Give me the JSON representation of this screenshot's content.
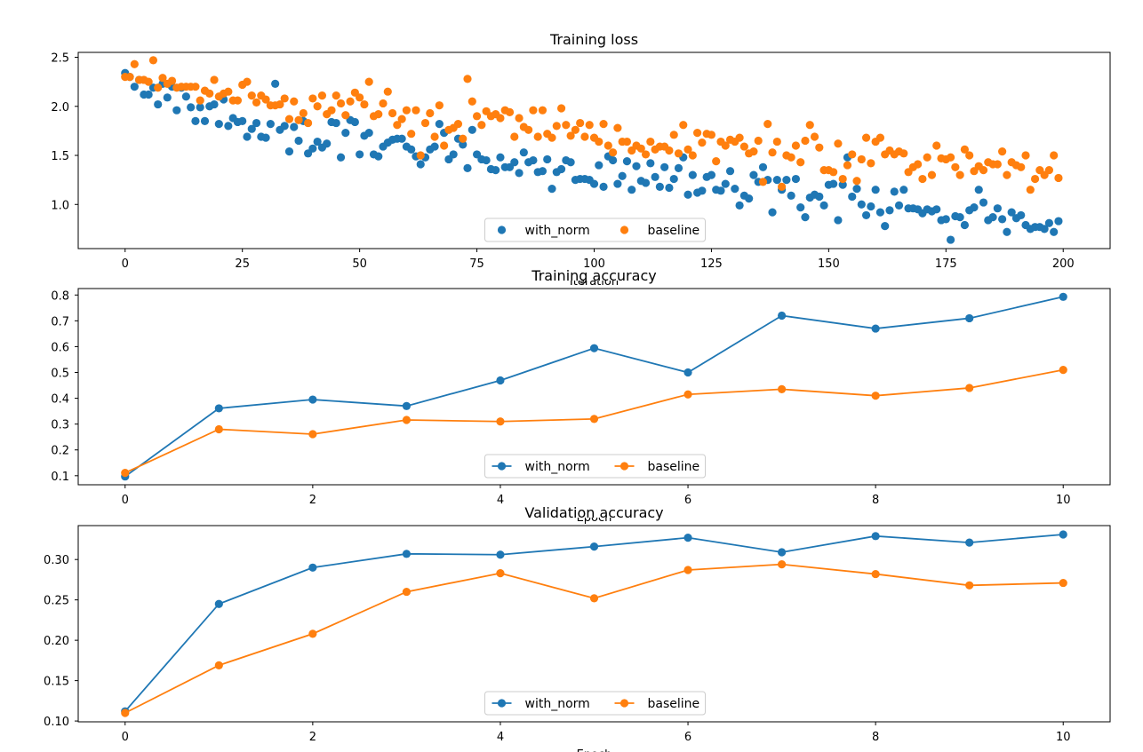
{
  "colors": {
    "with_norm": "#1f77b4",
    "baseline": "#ff7f0e",
    "axis": "#000000",
    "legend_border": "#cccccc"
  },
  "chart_data": [
    {
      "type": "scatter",
      "title": "Training loss",
      "xlabel": "Iteration",
      "ylabel": "",
      "xlim": [
        -10,
        210
      ],
      "ylim": [
        0.55,
        2.55
      ],
      "xticks": [
        0,
        25,
        50,
        75,
        100,
        125,
        150,
        175,
        200
      ],
      "yticks": [
        1.0,
        1.5,
        2.0,
        2.5
      ],
      "ytick_labels": [
        "1.0",
        "1.5",
        "2.0",
        "2.5"
      ],
      "legend": {
        "placement": "lower-center",
        "ncol": 2,
        "entries": [
          "with_norm",
          "baseline"
        ]
      },
      "x": [
        0,
        1,
        2,
        3,
        4,
        5,
        6,
        7,
        8,
        9,
        10,
        11,
        12,
        13,
        14,
        15,
        16,
        17,
        18,
        19,
        20,
        21,
        22,
        23,
        24,
        25,
        26,
        27,
        28,
        29,
        30,
        31,
        32,
        33,
        34,
        35,
        36,
        37,
        38,
        39,
        40,
        41,
        42,
        43,
        44,
        45,
        46,
        47,
        48,
        49,
        50,
        51,
        52,
        53,
        54,
        55,
        56,
        57,
        58,
        59,
        60,
        61,
        62,
        63,
        64,
        65,
        66,
        67,
        68,
        69,
        70,
        71,
        72,
        73,
        74,
        75,
        76,
        77,
        78,
        79,
        80,
        81,
        82,
        83,
        84,
        85,
        86,
        87,
        88,
        89,
        90,
        91,
        92,
        93,
        94,
        95,
        96,
        97,
        98,
        99,
        100,
        101,
        102,
        103,
        104,
        105,
        106,
        107,
        108,
        109,
        110,
        111,
        112,
        113,
        114,
        115,
        116,
        117,
        118,
        119,
        120,
        121,
        122,
        123,
        124,
        125,
        126,
        127,
        128,
        129,
        130,
        131,
        132,
        133,
        134,
        135,
        136,
        137,
        138,
        139,
        140,
        141,
        142,
        143,
        144,
        145,
        146,
        147,
        148,
        149,
        150,
        151,
        152,
        153,
        154,
        155,
        156,
        157,
        158,
        159,
        160,
        161,
        162,
        163,
        164,
        165,
        166,
        167,
        168,
        169,
        170,
        171,
        172,
        173,
        174,
        175,
        176,
        177,
        178,
        179,
        180,
        181,
        182,
        183,
        184,
        185,
        186,
        187,
        188,
        189,
        190,
        191,
        192,
        193,
        194,
        195,
        196,
        197,
        198,
        199
      ],
      "series": [
        {
          "name": "with_norm",
          "marker": "point",
          "values": [
            2.34,
            2.3,
            2.2,
            2.27,
            2.12,
            2.12,
            2.19,
            2.02,
            2.23,
            2.09,
            2.2,
            1.96,
            2.19,
            2.1,
            1.99,
            1.85,
            1.99,
            1.85,
            2.0,
            2.02,
            1.82,
            2.07,
            1.8,
            1.88,
            1.84,
            1.85,
            1.69,
            1.77,
            1.83,
            1.69,
            1.68,
            1.82,
            2.23,
            1.76,
            1.8,
            1.54,
            1.79,
            1.65,
            1.85,
            1.52,
            1.57,
            1.64,
            1.58,
            1.62,
            1.84,
            1.83,
            1.48,
            1.73,
            1.86,
            1.84,
            1.51,
            1.7,
            1.73,
            1.51,
            1.49,
            1.59,
            1.63,
            1.66,
            1.67,
            1.67,
            1.59,
            1.56,
            1.49,
            1.41,
            1.48,
            1.56,
            1.59,
            1.82,
            1.73,
            1.46,
            1.51,
            1.67,
            1.61,
            1.37,
            1.76,
            1.51,
            1.46,
            1.45,
            1.36,
            1.35,
            1.48,
            1.38,
            1.38,
            1.43,
            1.32,
            1.53,
            1.43,
            1.45,
            1.33,
            1.34,
            1.46,
            1.16,
            1.33,
            1.36,
            1.45,
            1.43,
            1.25,
            1.26,
            1.26,
            1.25,
            1.21,
            1.4,
            1.18,
            1.49,
            1.45,
            1.21,
            1.29,
            1.44,
            1.15,
            1.39,
            1.24,
            1.22,
            1.42,
            1.28,
            1.18,
            1.38,
            1.17,
            1.26,
            1.37,
            1.48,
            1.1,
            1.3,
            1.12,
            1.14,
            1.28,
            1.3,
            1.15,
            1.14,
            1.21,
            1.34,
            1.16,
            0.99,
            1.09,
            1.06,
            1.3,
            1.23,
            1.38,
            1.25,
            0.92,
            1.25,
            1.15,
            1.25,
            1.09,
            1.26,
            0.97,
            0.87,
            1.07,
            1.1,
            1.08,
            0.99,
            1.2,
            1.21,
            0.84,
            1.2,
            1.48,
            1.08,
            1.16,
            1.0,
            0.89,
            0.98,
            1.15,
            0.92,
            0.78,
            0.94,
            1.13,
            0.99,
            1.15,
            0.96,
            0.96,
            0.95,
            0.91,
            0.95,
            0.93,
            0.95,
            0.84,
            0.85,
            0.64,
            0.88,
            0.87,
            0.79,
            0.94,
            0.97,
            1.15,
            1.02,
            0.84,
            0.87,
            0.96,
            0.85,
            0.72,
            0.92,
            0.86,
            0.89,
            0.79,
            0.75,
            0.77,
            0.77,
            0.75,
            0.81,
            0.72,
            0.83
          ]
        },
        {
          "name": "baseline",
          "marker": "point",
          "values": [
            2.3,
            2.3,
            2.43,
            2.27,
            2.27,
            2.25,
            2.47,
            2.19,
            2.29,
            2.23,
            2.26,
            2.19,
            2.2,
            2.2,
            2.2,
            2.2,
            2.06,
            2.16,
            2.13,
            2.27,
            2.1,
            2.13,
            2.15,
            2.06,
            2.06,
            2.22,
            2.25,
            2.11,
            2.04,
            2.11,
            2.07,
            2.01,
            2.01,
            2.02,
            2.08,
            1.87,
            2.05,
            1.86,
            1.93,
            1.83,
            2.08,
            2.0,
            2.11,
            1.92,
            1.96,
            2.11,
            2.03,
            1.91,
            2.05,
            2.14,
            2.09,
            2.02,
            2.25,
            1.9,
            1.92,
            2.03,
            2.15,
            1.93,
            1.81,
            1.87,
            1.96,
            1.72,
            1.96,
            1.5,
            1.83,
            1.93,
            1.69,
            2.01,
            1.6,
            1.76,
            1.78,
            1.82,
            1.67,
            2.28,
            2.05,
            1.9,
            1.81,
            1.95,
            1.9,
            1.92,
            1.88,
            1.96,
            1.94,
            1.69,
            1.88,
            1.79,
            1.76,
            1.96,
            1.69,
            1.96,
            1.72,
            1.68,
            1.8,
            1.98,
            1.81,
            1.7,
            1.76,
            1.83,
            1.69,
            1.81,
            1.68,
            1.64,
            1.82,
            1.6,
            1.53,
            1.78,
            1.64,
            1.64,
            1.55,
            1.6,
            1.57,
            1.51,
            1.64,
            1.56,
            1.59,
            1.59,
            1.55,
            1.71,
            1.52,
            1.81,
            1.56,
            1.5,
            1.73,
            1.63,
            1.72,
            1.71,
            1.44,
            1.64,
            1.6,
            1.66,
            1.64,
            1.68,
            1.59,
            1.52,
            1.54,
            1.65,
            1.23,
            1.82,
            1.53,
            1.64,
            1.18,
            1.5,
            1.48,
            1.6,
            1.43,
            1.65,
            1.81,
            1.69,
            1.58,
            1.35,
            1.35,
            1.33,
            1.62,
            1.26,
            1.4,
            1.51,
            1.24,
            1.46,
            1.68,
            1.42,
            1.64,
            1.68,
            1.51,
            1.55,
            1.51,
            1.54,
            1.52,
            1.33,
            1.38,
            1.41,
            1.26,
            1.48,
            1.3,
            1.6,
            1.47,
            1.46,
            1.48,
            1.38,
            1.3,
            1.56,
            1.5,
            1.34,
            1.39,
            1.35,
            1.43,
            1.41,
            1.41,
            1.54,
            1.3,
            1.43,
            1.4,
            1.38,
            1.5,
            1.15,
            1.26,
            1.35,
            1.3,
            1.35,
            1.5,
            1.27
          ]
        }
      ]
    },
    {
      "type": "line",
      "title": "Training accuracy",
      "xlabel": "Epoch",
      "ylabel": "",
      "xlim": [
        -0.5,
        10.5
      ],
      "ylim": [
        0.065,
        0.825
      ],
      "xticks": [
        0,
        2,
        4,
        6,
        8,
        10
      ],
      "yticks": [
        0.1,
        0.2,
        0.3,
        0.4,
        0.5,
        0.6,
        0.7,
        0.8
      ],
      "ytick_labels": [
        "0.1",
        "0.2",
        "0.3",
        "0.4",
        "0.5",
        "0.6",
        "0.7",
        "0.8"
      ],
      "legend": {
        "placement": "lower-center",
        "ncol": 2,
        "entries": [
          "with_norm",
          "baseline"
        ]
      },
      "x": [
        0,
        1,
        2,
        3,
        4,
        5,
        6,
        7,
        8,
        9,
        10
      ],
      "series": [
        {
          "name": "with_norm",
          "marker": "line-point",
          "values": [
            0.097,
            0.361,
            0.395,
            0.37,
            0.469,
            0.594,
            0.5,
            0.72,
            0.67,
            0.71,
            0.793
          ]
        },
        {
          "name": "baseline",
          "marker": "line-point",
          "values": [
            0.111,
            0.28,
            0.261,
            0.316,
            0.31,
            0.32,
            0.415,
            0.435,
            0.41,
            0.44,
            0.51
          ]
        }
      ]
    },
    {
      "type": "line",
      "title": "Validation accuracy",
      "xlabel": "Epoch",
      "ylabel": "",
      "xlim": [
        -0.5,
        10.5
      ],
      "ylim": [
        0.099,
        0.342
      ],
      "xticks": [
        0,
        2,
        4,
        6,
        8,
        10
      ],
      "yticks": [
        0.1,
        0.15,
        0.2,
        0.25,
        0.3
      ],
      "ytick_labels": [
        "0.10",
        "0.15",
        "0.20",
        "0.25",
        "0.30"
      ],
      "legend": {
        "placement": "lower-center",
        "ncol": 2,
        "entries": [
          "with_norm",
          "baseline"
        ]
      },
      "x": [
        0,
        1,
        2,
        3,
        4,
        5,
        6,
        7,
        8,
        9,
        10
      ],
      "series": [
        {
          "name": "with_norm",
          "marker": "line-point",
          "values": [
            0.112,
            0.245,
            0.29,
            0.307,
            0.306,
            0.316,
            0.327,
            0.309,
            0.329,
            0.321,
            0.331
          ]
        },
        {
          "name": "baseline",
          "marker": "line-point",
          "values": [
            0.11,
            0.169,
            0.208,
            0.26,
            0.283,
            0.252,
            0.287,
            0.294,
            0.282,
            0.268,
            0.271
          ]
        }
      ]
    }
  ]
}
